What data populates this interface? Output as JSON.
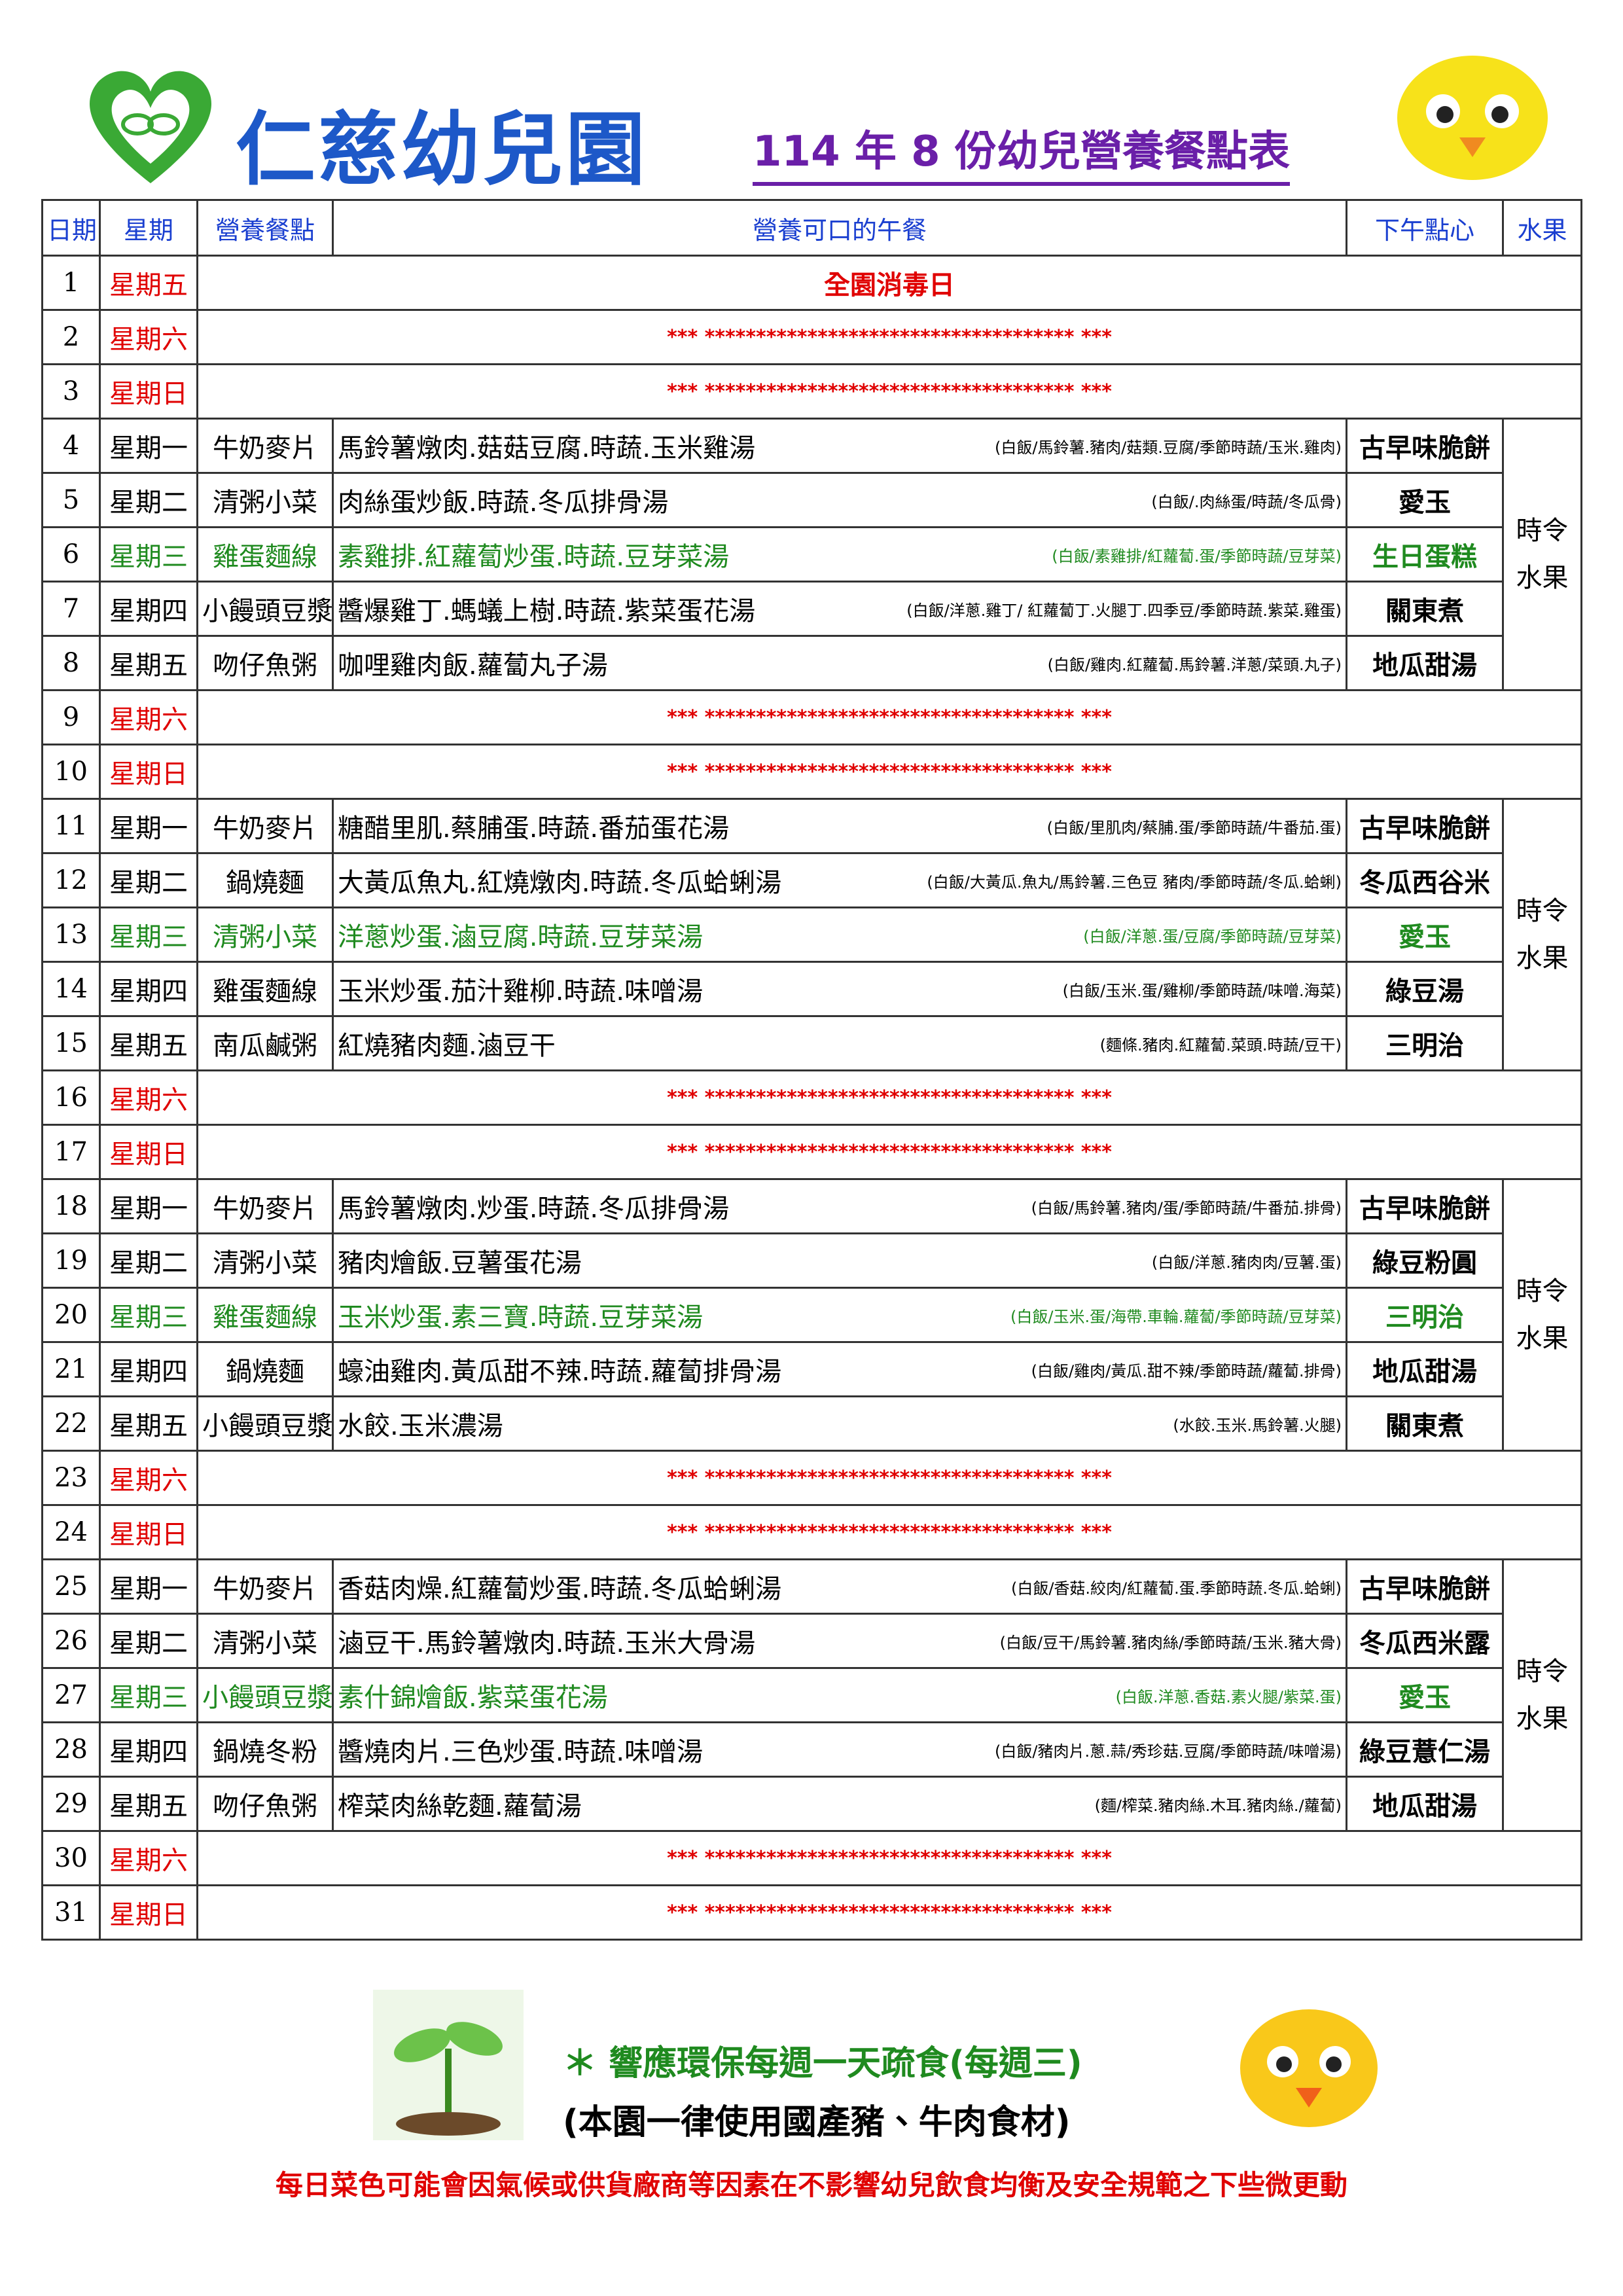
{
  "header": {
    "title": "仁慈幼兒園",
    "subtitle": "114 年 8 份幼兒營養餐點表"
  },
  "table": {
    "headers": [
      "日期",
      "星期",
      "營養餐點",
      "營養可口的午餐",
      "下午點心",
      "水果"
    ],
    "rows": [
      {
        "day": "1",
        "weekday": "星期五",
        "note": "全園消毒日",
        "color": "#e00000"
      },
      {
        "day": "2",
        "weekday": "星期六",
        "note": "*** ************************************ ***",
        "color": "#e00000"
      },
      {
        "day": "3",
        "weekday": "星期日",
        "note": "*** ************************************ ***",
        "color": "#e00000"
      },
      {
        "day": "4",
        "weekday": "星期一",
        "snack": "牛奶麥片",
        "lunch": "馬鈴薯燉肉.菇菇豆腐.時蔬.玉米雞湯",
        "detail": "(白飯/馬鈴薯.豬肉/菇類.豆腐/季節時蔬/玉米.雞肉)",
        "afternoon": "古早味脆餅",
        "fruit": "時令\n水果"
      },
      {
        "day": "5",
        "weekday": "星期二",
        "snack": "清粥小菜",
        "lunch": "肉絲蛋炒飯.時蔬.冬瓜排骨湯",
        "detail": "(白飯/.肉絲蛋/時蔬/冬瓜骨)",
        "afternoon": "愛玉"
      },
      {
        "day": "6",
        "weekday": "星期三",
        "snack": "雞蛋麵線",
        "lunch": "素雞排.紅蘿蔔炒蛋.時蔬.豆芽菜湯",
        "detail": "(白飯/素雞排/紅蘿蔔.蛋/季節時蔬/豆芽菜)",
        "afternoon": "生日蛋糕",
        "color": "#1f8a1f"
      },
      {
        "day": "7",
        "weekday": "星期四",
        "snack": "小饅頭豆漿",
        "lunch": "醬爆雞丁.螞蟻上樹.時蔬.紫菜蛋花湯",
        "detail": "(白飯/洋蔥.雞丁/ 紅蘿蔔丁.火腿丁.四季豆/季節時蔬.紫菜.雞蛋)",
        "afternoon": "關東煮"
      },
      {
        "day": "8",
        "weekday": "星期五",
        "snack": "吻仔魚粥",
        "lunch": "咖哩雞肉飯.蘿蔔丸子湯",
        "detail": "(白飯/雞肉.紅蘿蔔.馬鈴薯.洋蔥/菜頭.丸子)",
        "afternoon": "地瓜甜湯"
      },
      {
        "day": "9",
        "weekday": "星期六",
        "note": "*** ************************************ ***",
        "color": "#e00000"
      },
      {
        "day": "10",
        "weekday": "星期日",
        "note": "*** ************************************ ***",
        "color": "#e00000"
      },
      {
        "day": "11",
        "weekday": "星期一",
        "snack": "牛奶麥片",
        "lunch": "糖醋里肌.蔡脯蛋.時蔬.番茄蛋花湯",
        "detail": "(白飯/里肌肉/蔡脯.蛋/季節時蔬/牛番茄.蛋)",
        "afternoon": "古早味脆餅",
        "fruit": "時令\n水果"
      },
      {
        "day": "12",
        "weekday": "星期二",
        "snack": "鍋燒麵",
        "lunch": "大黃瓜魚丸.紅燒燉肉.時蔬.冬瓜蛤蜊湯",
        "detail": "(白飯/大黃瓜.魚丸/馬鈴薯.三色豆 豬肉/季節時蔬/冬瓜.蛤蜊)",
        "afternoon": "冬瓜西谷米"
      },
      {
        "day": "13",
        "weekday": "星期三",
        "snack": "清粥小菜",
        "lunch": "洋蔥炒蛋.滷豆腐.時蔬.豆芽菜湯",
        "detail": "(白飯/洋蔥.蛋/豆腐/季節時蔬/豆芽菜)",
        "afternoon": "愛玉",
        "color": "#1f8a1f"
      },
      {
        "day": "14",
        "weekday": "星期四",
        "snack": "雞蛋麵線",
        "lunch": "玉米炒蛋.茄汁雞柳.時蔬.味噌湯",
        "detail": "(白飯/玉米.蛋/雞柳/季節時蔬/味噌.海菜)",
        "afternoon": "綠豆湯"
      },
      {
        "day": "15",
        "weekday": "星期五",
        "snack": "南瓜鹹粥",
        "lunch": "紅燒豬肉麵.滷豆干",
        "detail": "(麵條.豬肉.紅蘿蔔.菜頭.時蔬/豆干)",
        "afternoon": "三明治"
      },
      {
        "day": "16",
        "weekday": "星期六",
        "note": "*** ************************************ ***",
        "color": "#e00000"
      },
      {
        "day": "17",
        "weekday": "星期日",
        "note": "*** ************************************ ***",
        "color": "#e00000"
      },
      {
        "day": "18",
        "weekday": "星期一",
        "snack": "牛奶麥片",
        "lunch": "馬鈴薯燉肉.炒蛋.時蔬.冬瓜排骨湯",
        "detail": "(白飯/馬鈴薯.豬肉/蛋/季節時蔬/牛番茄.排骨)",
        "afternoon": "古早味脆餅",
        "fruit": "時令\n水果"
      },
      {
        "day": "19",
        "weekday": "星期二",
        "snack": "清粥小菜",
        "lunch": "豬肉燴飯.豆薯蛋花湯",
        "detail": "(白飯/洋蔥.豬肉肉/豆薯.蛋)",
        "afternoon": "綠豆粉圓"
      },
      {
        "day": "20",
        "weekday": "星期三",
        "snack": "雞蛋麵線",
        "lunch": "玉米炒蛋.素三寶.時蔬.豆芽菜湯",
        "detail": "(白飯/玉米.蛋/海帶.車輪.蘿蔔/季節時蔬/豆芽菜)",
        "afternoon": "三明治",
        "color": "#1f8a1f"
      },
      {
        "day": "21",
        "weekday": "星期四",
        "snack": "鍋燒麵",
        "lunch": "蠔油雞肉.黃瓜甜不辣.時蔬.蘿蔔排骨湯",
        "detail": "(白飯/雞肉/黃瓜.甜不辣/季節時蔬/蘿蔔.排骨)",
        "afternoon": "地瓜甜湯"
      },
      {
        "day": "22",
        "weekday": "星期五",
        "snack": "小饅頭豆漿",
        "lunch": "水餃.玉米濃湯",
        "detail": "(水餃.玉米.馬鈴薯.火腿)",
        "afternoon": "關東煮"
      },
      {
        "day": "23",
        "weekday": "星期六",
        "note": "*** ************************************ ***",
        "color": "#e00000"
      },
      {
        "day": "24",
        "weekday": "星期日",
        "note": "*** ************************************ ***",
        "color": "#e00000"
      },
      {
        "day": "25",
        "weekday": "星期一",
        "snack": "牛奶麥片",
        "lunch": "香菇肉燥.紅蘿蔔炒蛋.時蔬.冬瓜蛤蜊湯",
        "detail": "(白飯/香菇.絞肉/紅蘿蔔.蛋.季節時蔬.冬瓜.蛤蜊)",
        "afternoon": "古早味脆餅",
        "fruit": "時令\n水果"
      },
      {
        "day": "26",
        "weekday": "星期二",
        "snack": "清粥小菜",
        "lunch": "滷豆干.馬鈴薯燉肉.時蔬.玉米大骨湯",
        "detail": "(白飯/豆干/馬鈴薯.豬肉絲/季節時蔬/玉米.豬大骨)",
        "afternoon": "冬瓜西米露"
      },
      {
        "day": "27",
        "weekday": "星期三",
        "snack": "小饅頭豆漿",
        "lunch": "素什錦燴飯.紫菜蛋花湯",
        "detail": "(白飯.洋蔥.香菇.素火腿/紫菜.蛋)",
        "afternoon": "愛玉",
        "color": "#1f8a1f"
      },
      {
        "day": "28",
        "weekday": "星期四",
        "snack": "鍋燒冬粉",
        "lunch": "醬燒肉片.三色炒蛋.時蔬.味噌湯",
        "detail": "(白飯/豬肉片.蔥.蒜/秀珍菇.豆腐/季節時蔬/味噌湯)",
        "afternoon": "綠豆薏仁湯"
      },
      {
        "day": "29",
        "weekday": "星期五",
        "snack": "吻仔魚粥",
        "lunch": "榨菜肉絲乾麵.蘿蔔湯",
        "detail": "(麵/榨菜.豬肉絲.木耳.豬肉絲./蘿蔔)",
        "afternoon": "地瓜甜湯"
      },
      {
        "day": "30",
        "weekday": "星期六",
        "note": "*** ************************************ ***",
        "color": "#e00000"
      },
      {
        "day": "31",
        "weekday": "星期日",
        "note": "*** ************************************ ***",
        "color": "#e00000"
      }
    ]
  },
  "footer": {
    "eco": "＊ 響應環保每週一天疏食(每週三)",
    "meat": "(本園一律使用國產豬、牛肉食材)",
    "notice": "每日菜色可能會因氣候或供貨廠商等因素在不影響幼兒飲食均衡及安全規範之下些微更動"
  }
}
